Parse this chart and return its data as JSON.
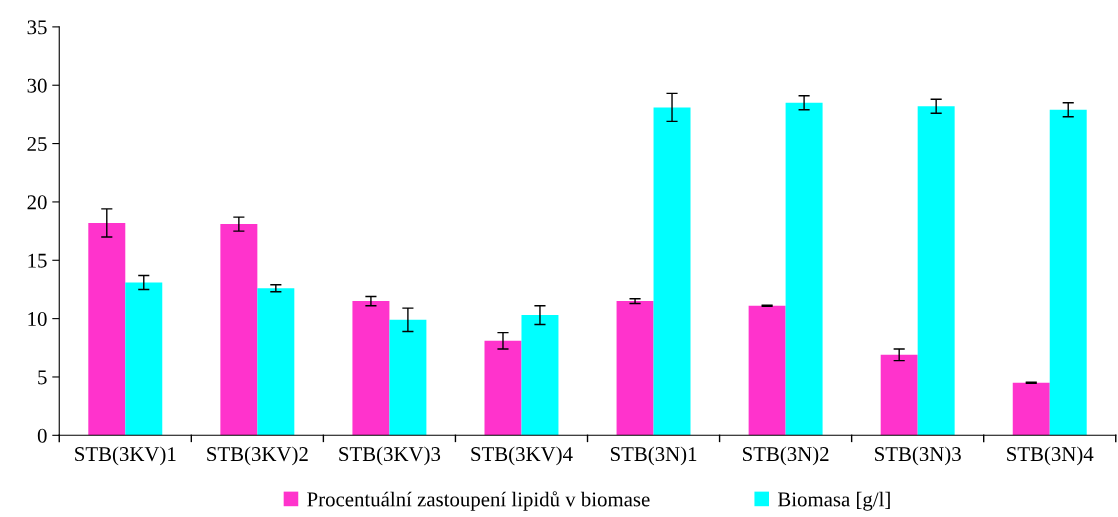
{
  "chart_data": {
    "type": "bar",
    "categories": [
      "STB(3KV)1",
      "STB(3KV)2",
      "STB(3KV)3",
      "STB(3KV)4",
      "STB(3N)1",
      "STB(3N)2",
      "STB(3N)3",
      "STB(3N)4"
    ],
    "series": [
      {
        "name": "Procentuální zastoupení lipidů v biomase",
        "color": "#ff33cc",
        "values": [
          18.2,
          18.1,
          11.5,
          8.1,
          11.5,
          11.1,
          6.9,
          4.5
        ],
        "errors": [
          1.2,
          0.6,
          0.4,
          0.7,
          0.2,
          0.05,
          0.5,
          0.05
        ]
      },
      {
        "name": "Biomasa [g/l]",
        "color": "#00ffff",
        "values": [
          13.1,
          12.6,
          9.9,
          10.3,
          28.1,
          28.5,
          28.2,
          27.9
        ],
        "errors": [
          0.6,
          0.3,
          1.0,
          0.8,
          1.2,
          0.6,
          0.6,
          0.6
        ]
      }
    ],
    "ylim": [
      0,
      35
    ],
    "yticks": [
      0,
      5,
      10,
      15,
      20,
      25,
      30,
      35
    ],
    "grid": false,
    "legend": "bottom"
  }
}
